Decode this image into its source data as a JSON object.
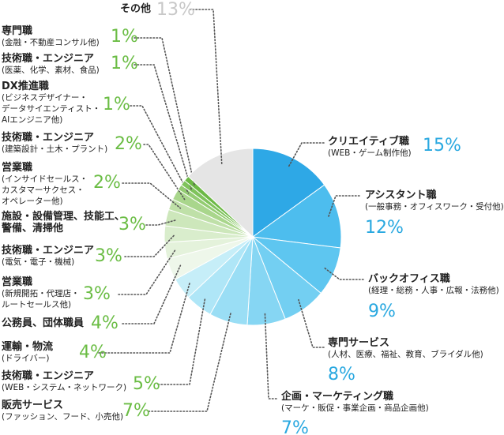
{
  "chart_data": {
    "type": "pie",
    "categories": [
      "クリエイティブ職",
      "アシスタント職",
      "バックオフィス職",
      "専門サービス",
      "企画・マーケティング職",
      "販売サービス",
      "技術職・エンジニア",
      "運輸・物流",
      "公務員、団体職員",
      "営業職",
      "技術職・エンジニア",
      "施設・設備管理、技能工、\n警備、清掃他",
      "営業職",
      "技術職・エンジニア",
      "DX推進職",
      "技術職・エンジニア",
      "専門職",
      "その他"
    ],
    "details": [
      "(WEB・ゲーム制作他)",
      "(一般事務・オフィスワーク・受付他)",
      "(経理・総務・人事・広報・法務他)",
      "(人材、医療、福祉、教育、ブライダル他)",
      "(マーケ・販促・事業企画・商品企画他)",
      "(ファッション、フード、小売他)",
      "(WEB・システム・ネットワーク)",
      "(ドライバー)",
      null,
      "(新規開拓・代理店・\nルートセールス他)",
      "(電気・電子・機械)",
      null,
      "(インサイドセールス・\nカスタマーサクセス・\nオペレーター他)",
      "(建築設計・土木・プラント)",
      "(ビジネスデザイナー・\nデータサイエンティスト・\nAIエンジニア他)",
      "(医薬、化学、素材、食品)",
      "(金融・不動産コンサル他)",
      null
    ],
    "values": [
      15,
      12,
      9,
      8,
      7,
      7,
      5,
      4,
      4,
      3,
      3,
      3,
      2,
      2,
      1,
      1,
      1,
      13
    ],
    "value_labels": [
      "15%",
      "12%",
      "9%",
      "8%",
      "7%",
      "7%",
      "5%",
      "4%",
      "4%",
      "3%",
      "3%",
      "3%",
      "2%",
      "2%",
      "1%",
      "1%",
      "1%",
      "13%"
    ],
    "colors": [
      "#2ea8e6",
      "#4dbdee",
      "#5ec6f0",
      "#73cff2",
      "#86d6f3",
      "#9adef5",
      "#afe6f7",
      "#c6eef8",
      "#eef7ea",
      "#e4f2db",
      "#d9edcc",
      "#cde7bb",
      "#bfe0a8",
      "#a9d68c",
      "#93cc72",
      "#7fc35c",
      "#6cb946",
      "#e5e5e5"
    ],
    "value_label_colors": [
      "#29a8e0",
      "#29a8e0",
      "#29a8e0",
      "#29a8e0",
      "#29a8e0",
      "#6bbd45",
      "#6bbd45",
      "#6bbd45",
      "#6bbd45",
      "#6bbd45",
      "#6bbd45",
      "#6bbd45",
      "#6bbd45",
      "#6bbd45",
      "#6bbd45",
      "#6bbd45",
      "#6bbd45",
      "#c8c8c8"
    ]
  }
}
